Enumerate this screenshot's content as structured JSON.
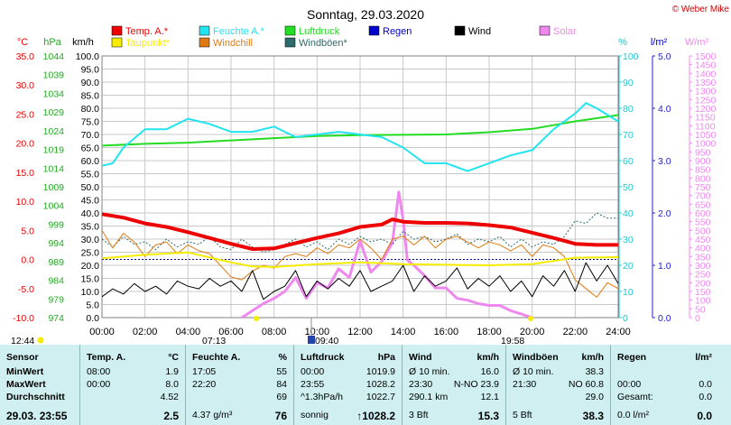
{
  "header": {
    "title": "Sonntag, 29.03.2020",
    "credit": "© Weber Mike"
  },
  "colors": {
    "temp": "#ee0000",
    "humidity": "#22e4f0",
    "pressure": "#22dd22",
    "wind": "#000000",
    "solar": "#ee88ee",
    "dewpoint": "#f5ec00",
    "windchill": "#e07a10",
    "gusts": "#2e6a6a",
    "rain": "#0000cc",
    "table_bg": "#cfeff0"
  },
  "legend": [
    {
      "label": "Temp. A.*",
      "color": "#ee0000"
    },
    {
      "label": "Feuchte A.*",
      "color": "#22e4f0"
    },
    {
      "label": "Luftdruck",
      "color": "#22dd22"
    },
    {
      "label": "Regen",
      "color": "#0000cc"
    },
    {
      "label": "Wind",
      "color": "#000000"
    },
    {
      "label": "Solar",
      "color": "#ee88ee"
    },
    {
      "label": "Taupunkt*",
      "color": "#f5ec00"
    },
    {
      "label": "Windchill",
      "color": "#e07a10"
    },
    {
      "label": "Windböen*",
      "color": "#2e6a6a"
    }
  ],
  "chart_data": {
    "type": "line",
    "x_ticks": [
      "00:00",
      "02:00",
      "04:00",
      "06:00",
      "08:00",
      "10:00",
      "12:00",
      "14:00",
      "16:00",
      "18:00",
      "20:00",
      "22:00",
      "24:00"
    ],
    "axes": {
      "temp": {
        "unit": "°C",
        "min": -10.0,
        "max": 35.0,
        "ticks": [
          "35.0",
          "30.0",
          "25.0",
          "20.0",
          "15.0",
          "10.0",
          "5.0",
          "0.0",
          "-5.0",
          "-10.0"
        ]
      },
      "pressure": {
        "unit": "hPa",
        "min": 974,
        "max": 1044,
        "ticks": [
          "1044",
          "1039",
          "1034",
          "1029",
          "1024",
          "1019",
          "1014",
          "1009",
          "1004",
          "999",
          "994",
          "989",
          "984",
          "979",
          "974"
        ]
      },
      "wind": {
        "unit": "km/h",
        "min": 0,
        "max": 100,
        "ticks": [
          "100.0",
          "95.0",
          "90.0",
          "85.0",
          "80.0",
          "75.0",
          "70.0",
          "65.0",
          "60.0",
          "55.0",
          "50.0",
          "45.0",
          "40.0",
          "35.0",
          "30.0",
          "25.0",
          "20.0",
          "15.0",
          "10.0",
          "5.0",
          "0.0"
        ]
      },
      "humidity": {
        "unit": "%",
        "min": 0,
        "max": 100,
        "ticks": [
          "100",
          "90",
          "80",
          "70",
          "60",
          "50",
          "40",
          "30",
          "20",
          "10",
          "0"
        ]
      },
      "rain": {
        "unit": "l/m²",
        "min": 0,
        "max": 5.0,
        "ticks": [
          "5.0",
          "4.0",
          "3.0",
          "2.0",
          "1.0",
          "0.0"
        ]
      },
      "solar": {
        "unit": "W/m²",
        "min": 0,
        "max": 1500,
        "ticks": [
          "1500",
          "1450",
          "1400",
          "1350",
          "1300",
          "1250",
          "1200",
          "1150",
          "1100",
          "1050",
          "1000",
          "950",
          "900",
          "850",
          "800",
          "750",
          "700",
          "650",
          "600",
          "550",
          "500",
          "450",
          "400",
          "350",
          "300",
          "250",
          "200",
          "150",
          "100",
          "50",
          "0"
        ]
      }
    },
    "series": [
      {
        "name": "Temp. A.*",
        "axis": "temp",
        "x": [
          0,
          1,
          2,
          3,
          4,
          5,
          6,
          7,
          8,
          9,
          10,
          11,
          12,
          13,
          13.5,
          14,
          15,
          16,
          17,
          18,
          19,
          20,
          21,
          22,
          23,
          24
        ],
        "y": [
          7.8,
          7.2,
          6.2,
          5.6,
          4.7,
          3.7,
          2.7,
          1.8,
          1.9,
          2.8,
          3.7,
          4.5,
          5.6,
          6.0,
          6.9,
          6.5,
          6.3,
          6.3,
          6.2,
          5.9,
          5.5,
          4.6,
          3.7,
          2.7,
          2.5,
          2.5
        ]
      },
      {
        "name": "Feuchte A.*",
        "axis": "humidity",
        "x": [
          0,
          0.5,
          1,
          2,
          3,
          4,
          5,
          6,
          7,
          8,
          9,
          10,
          11,
          12,
          13,
          14,
          15,
          16,
          17,
          18,
          19,
          20,
          21,
          22,
          22.5,
          23,
          24
        ],
        "y": [
          58,
          59,
          65,
          72,
          72,
          76,
          74,
          71,
          71,
          73,
          69,
          70,
          71,
          70,
          69,
          65,
          59,
          59,
          56,
          59,
          62,
          64,
          72,
          78,
          82,
          80,
          75
        ]
      },
      {
        "name": "Luftdruck",
        "axis": "pressure",
        "x": [
          0,
          2,
          4,
          6,
          8,
          10,
          12,
          14,
          16,
          18,
          20,
          22,
          24
        ],
        "y": [
          1020.0,
          1020.5,
          1020.8,
          1021.4,
          1022.0,
          1022.6,
          1022.8,
          1022.9,
          1023.0,
          1023.6,
          1024.5,
          1026.5,
          1028.2
        ]
      },
      {
        "name": "Taupunkt*",
        "axis": "temp",
        "x": [
          0,
          2,
          4,
          6,
          7,
          8,
          10,
          12,
          14,
          16,
          18,
          20,
          22,
          24
        ],
        "y": [
          0.2,
          0.8,
          1.2,
          -0.5,
          -1.2,
          -1.3,
          -0.8,
          -0.5,
          -0.8,
          -0.9,
          -1.0,
          -0.8,
          0.3,
          0.4
        ]
      },
      {
        "name": "Windchill",
        "axis": "temp",
        "x": [
          0,
          0.5,
          1,
          1.5,
          2,
          2.5,
          3,
          3.5,
          4,
          4.5,
          5,
          5.5,
          6,
          6.5,
          7,
          7.5,
          8,
          8.5,
          9,
          9.5,
          10,
          10.5,
          11,
          11.5,
          12,
          12.5,
          13,
          13.5,
          14,
          14.5,
          15,
          15.5,
          16,
          16.5,
          17,
          17.5,
          18,
          18.5,
          19,
          19.5,
          20,
          20.5,
          21,
          21.5,
          22,
          22.5,
          23,
          23.5,
          24
        ],
        "y": [
          5.0,
          2.0,
          4.5,
          3.0,
          0.5,
          2.5,
          3.0,
          1.0,
          2.5,
          1.5,
          1.0,
          -1.0,
          -3.0,
          -3.5,
          -2.0,
          -1.0,
          -1.5,
          0.5,
          1.0,
          0.5,
          2.0,
          1.0,
          2.5,
          2.0,
          3.5,
          2.0,
          0.0,
          3.5,
          4.0,
          2.5,
          4.0,
          2.0,
          3.5,
          4.0,
          3.0,
          2.0,
          3.0,
          2.5,
          1.5,
          2.5,
          0.5,
          2.5,
          2.0,
          0.5,
          -3.5,
          -5.0,
          -6.5,
          -4.0,
          -5.0
        ]
      },
      {
        "name": "Wind",
        "axis": "wind",
        "x": [
          0,
          0.5,
          1,
          1.5,
          2,
          2.5,
          3,
          3.5,
          4,
          4.5,
          5,
          5.5,
          6,
          6.5,
          7,
          7.5,
          8,
          8.5,
          9,
          9.5,
          10,
          10.5,
          11,
          11.5,
          12,
          12.5,
          13,
          13.5,
          14,
          14.5,
          15,
          15.5,
          16,
          16.5,
          17,
          17.5,
          18,
          18.5,
          19,
          19.5,
          20,
          20.5,
          21,
          21.5,
          22,
          22.5,
          23,
          23.5,
          24
        ],
        "y": [
          8,
          11,
          9,
          13,
          10,
          12,
          9,
          14,
          12,
          11,
          15,
          12,
          14,
          10,
          18,
          7,
          10,
          12,
          18,
          8,
          14,
          11,
          15,
          12,
          18,
          10,
          12,
          14,
          20,
          10,
          16,
          12,
          14,
          19,
          11,
          15,
          12,
          16,
          10,
          14,
          8,
          16,
          12,
          18,
          10,
          21,
          14,
          20,
          13
        ]
      },
      {
        "name": "Windböen*",
        "axis": "wind",
        "x": [
          0,
          0.5,
          1,
          1.5,
          2,
          2.5,
          3,
          3.5,
          4,
          4.5,
          5,
          5.5,
          6,
          6.5,
          7,
          7.5,
          8,
          8.5,
          9,
          9.5,
          10,
          10.5,
          11,
          11.5,
          12,
          12.5,
          13,
          13.5,
          14,
          14.5,
          15,
          15.5,
          16,
          16.5,
          17,
          17.5,
          18,
          18.5,
          19,
          19.5,
          20,
          20.5,
          21,
          21.5,
          22,
          22.5,
          23,
          23.5,
          24
        ],
        "y": [
          30,
          27,
          31,
          28,
          29,
          26,
          30,
          27,
          29,
          28,
          31,
          27,
          26,
          30,
          27,
          25,
          26,
          28,
          30,
          27,
          29,
          26,
          30,
          28,
          31,
          29,
          30,
          28,
          33,
          30,
          31,
          29,
          30,
          32,
          28,
          30,
          29,
          31,
          27,
          30,
          27,
          29,
          28,
          31,
          37,
          36,
          40,
          38,
          38
        ]
      },
      {
        "name": "Solar",
        "axis": "solar",
        "x": [
          6.5,
          7,
          7.5,
          8,
          8.5,
          9,
          9.5,
          10,
          10.5,
          11,
          11.5,
          12,
          12.5,
          13,
          13.5,
          13.8,
          14,
          14.2,
          14.5,
          15,
          15.5,
          16,
          16.5,
          17,
          17.5,
          18,
          18.5,
          19,
          19.5,
          20
        ],
        "y": [
          0,
          40,
          80,
          110,
          150,
          230,
          110,
          200,
          170,
          280,
          230,
          440,
          260,
          320,
          430,
          720,
          560,
          330,
          300,
          240,
          170,
          170,
          110,
          100,
          80,
          70,
          70,
          40,
          20,
          0
        ]
      }
    ],
    "markers": [
      {
        "label": "12:44",
        "kind": "sun"
      },
      {
        "label": "07:13",
        "kind": "sunrise"
      },
      {
        "label": "09:40",
        "kind": "moon"
      },
      {
        "label": "19:58",
        "kind": "sunset"
      }
    ]
  },
  "stats": {
    "columns": [
      {
        "title": "Sensor",
        "unit": "",
        "rows": [
          "MinWert",
          "MaxWert",
          "Durchschnitt"
        ],
        "current": "29.03. 23:55"
      },
      {
        "title": "Temp. A.",
        "unit": "°C",
        "rows": [
          [
            "08:00",
            "1.9"
          ],
          [
            "00:00",
            "8.0"
          ],
          [
            "",
            "4.52"
          ]
        ],
        "current": [
          "",
          "2.5"
        ]
      },
      {
        "title": "Feuchte A.",
        "unit": "%",
        "rows": [
          [
            "17:05",
            "55"
          ],
          [
            "22:20",
            "84"
          ],
          [
            "",
            "69"
          ]
        ],
        "current": [
          "4.37 g/m³",
          "76"
        ]
      },
      {
        "title": "Luftdruck",
        "unit": "hPa",
        "rows": [
          [
            "00:00",
            "1019.9"
          ],
          [
            "23:55",
            "1028.2"
          ],
          [
            "^1.3hPa/h",
            "1022.7"
          ]
        ],
        "current": [
          "sonnig",
          "↑1028.2"
        ]
      },
      {
        "title": "Wind",
        "unit": "km/h",
        "rows": [
          [
            "Ø 10 min.",
            "16.0"
          ],
          [
            "23:30",
            "N-NO 23.9"
          ],
          [
            "290.1 km",
            "12.1"
          ]
        ],
        "current": [
          "3 Bft",
          "15.3"
        ]
      },
      {
        "title": "Windböen",
        "unit": "km/h",
        "rows": [
          [
            "Ø 10 min.",
            "38.3"
          ],
          [
            "21:30",
            "NO 60.8"
          ],
          [
            "",
            "29.0"
          ]
        ],
        "current": [
          "5 Bft",
          "38.3"
        ]
      },
      {
        "title": "Regen",
        "unit": "l/m²",
        "rows": [
          [
            "",
            ""
          ],
          [
            "00:00",
            "0.0"
          ],
          [
            "Gesamt:",
            "0.0"
          ]
        ],
        "current": [
          "0.0 l/m²",
          "0.0"
        ]
      }
    ]
  }
}
